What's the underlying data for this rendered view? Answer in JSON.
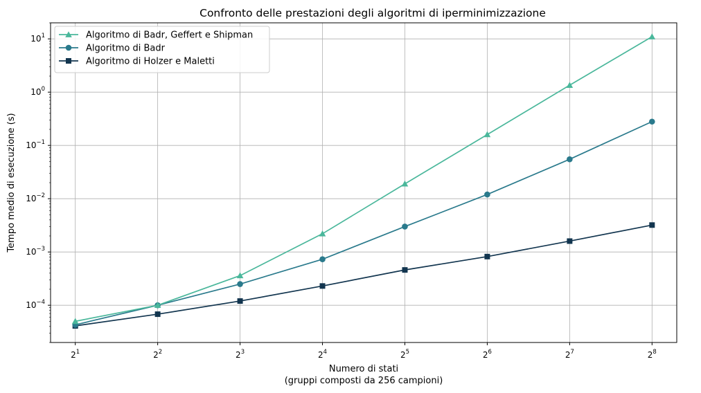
{
  "chart_data": {
    "type": "line",
    "title": "Confronto delle prestazioni degli algoritmi di iperminimizzazione",
    "xlabel": "Numero di stati",
    "xlabel_sub": "(gruppi composti da 256 campioni)",
    "ylabel": "Tempo medio di esecuzione (s)",
    "yscale": "log",
    "ylim": [
      2e-05,
      20
    ],
    "grid": true,
    "legend_position": "upper-left",
    "x_exponents": [
      1,
      2,
      3,
      4,
      5,
      6,
      7,
      8
    ],
    "x_tick_labels": [
      {
        "base": "2",
        "exp": "1"
      },
      {
        "base": "2",
        "exp": "2"
      },
      {
        "base": "2",
        "exp": "3"
      },
      {
        "base": "2",
        "exp": "4"
      },
      {
        "base": "2",
        "exp": "5"
      },
      {
        "base": "2",
        "exp": "6"
      },
      {
        "base": "2",
        "exp": "7"
      },
      {
        "base": "2",
        "exp": "8"
      }
    ],
    "y_tick_labels": [
      {
        "base": "10",
        "exp": "−4",
        "value": 0.0001
      },
      {
        "base": "10",
        "exp": "−3",
        "value": 0.001
      },
      {
        "base": "10",
        "exp": "−2",
        "value": 0.01
      },
      {
        "base": "10",
        "exp": "−1",
        "value": 0.1
      },
      {
        "base": "10",
        "exp": "0",
        "value": 1
      },
      {
        "base": "10",
        "exp": "1",
        "value": 10
      }
    ],
    "series": [
      {
        "name": "Algoritmo di Badr, Geffert e Shipman",
        "color": "#4ab79b",
        "marker": "triangle",
        "values": [
          5e-05,
          0.0001,
          0.00036,
          0.0022,
          0.019,
          0.16,
          1.35,
          11.0
        ]
      },
      {
        "name": "Algoritmo di Badr",
        "color": "#2a7a8c",
        "marker": "circle",
        "values": [
          4.3e-05,
          0.0001,
          0.00025,
          0.00073,
          0.003,
          0.012,
          0.055,
          0.28
        ]
      },
      {
        "name": "Algoritmo di Holzer e Maletti",
        "color": "#12354f",
        "marker": "square",
        "values": [
          4.1e-05,
          6.8e-05,
          0.00012,
          0.00023,
          0.00046,
          0.00082,
          0.0016,
          0.0032
        ]
      }
    ]
  }
}
